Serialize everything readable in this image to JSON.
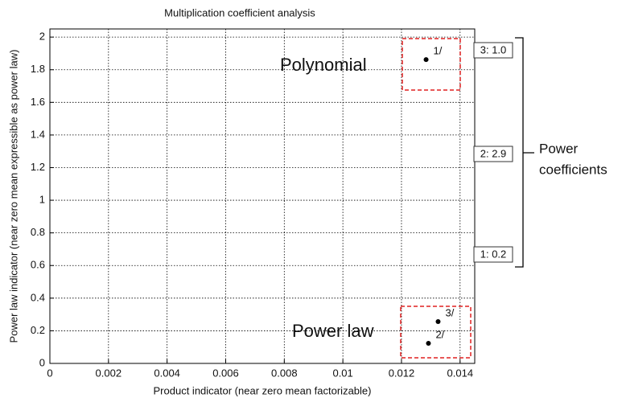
{
  "chart_data": {
    "type": "scatter",
    "title": "Multiplication coefficient analysis",
    "x_label": "Product indicator (near zero mean factorizable)",
    "y_label": "Power law indicator (near zero mean expressible as power law)",
    "x": [
      0.01284,
      0.01292,
      0.01325
    ],
    "values": [
      1.862,
      0.123,
      0.256
    ],
    "point_labels": [
      "1/",
      "2/",
      "3/"
    ],
    "color": "#000000",
    "xlim": [
      0,
      0.0145
    ],
    "xticks": [
      0,
      0.002,
      0.004,
      0.006,
      0.008,
      0.01,
      0.012,
      0.014
    ],
    "ylim": [
      0,
      2.05
    ],
    "yticks": [
      0,
      0.2,
      0.4,
      0.6,
      0.8,
      1,
      1.2,
      1.4,
      1.6,
      1.8,
      2
    ],
    "grid": true,
    "annotations": [
      "Polynomial",
      "Power law"
    ],
    "coefficient_boxes": [
      "3: 1.0",
      "2: 2.9",
      "1: 0.2"
    ],
    "bracket_label": [
      "Power",
      "coefficients"
    ]
  }
}
